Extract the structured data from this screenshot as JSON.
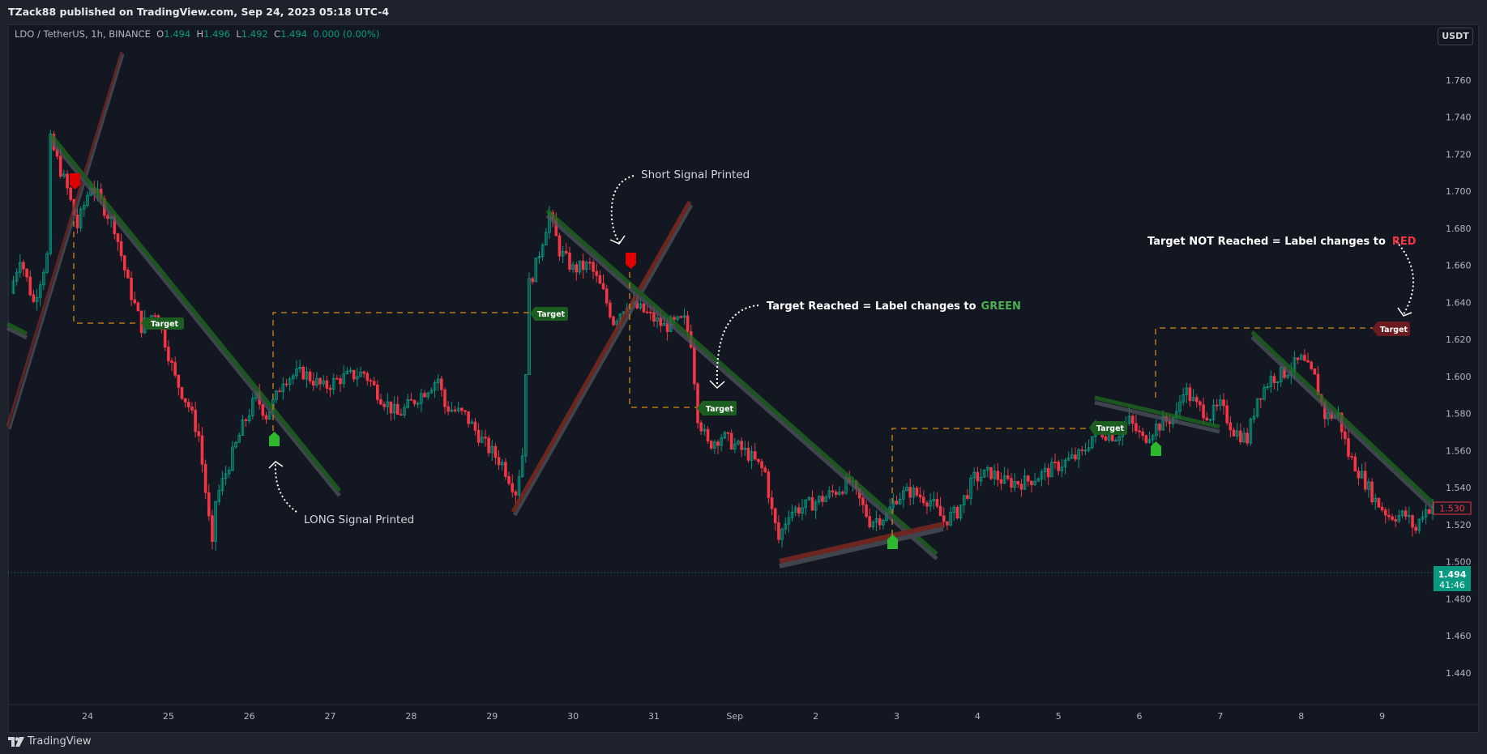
{
  "header": {
    "publisher_line": "TZack88 published on TradingView.com, Sep 24, 2023 05:18 UTC-4"
  },
  "legend": {
    "symbol": "LDO / TetherUS, 1h, BINANCE",
    "o_label": "O",
    "o": "1.494",
    "h_label": "H",
    "h": "1.496",
    "l_label": "L",
    "l": "1.492",
    "c_label": "C",
    "c": "1.494",
    "change": "0.000 (0.00%)"
  },
  "currency_button": "USDT",
  "price_axis": {
    "ticks": [
      "1.760",
      "1.740",
      "1.720",
      "1.700",
      "1.680",
      "1.660",
      "1.640",
      "1.620",
      "1.600",
      "1.580",
      "1.560",
      "1.540",
      "1.520",
      "1.500",
      "1.480",
      "1.460",
      "1.440"
    ],
    "marker_label": "1.530",
    "current_price": "1.494",
    "countdown": "41:46"
  },
  "time_axis": {
    "ticks": [
      "24",
      "25",
      "26",
      "27",
      "28",
      "29",
      "30",
      "31",
      "Sep",
      "2",
      "3",
      "4",
      "5",
      "6",
      "7",
      "8",
      "9"
    ]
  },
  "annotations": {
    "long_signal": "LONG Signal Printed",
    "short_signal": "Short Signal Printed",
    "target_reached": "Target Reached = Label changes to",
    "target_reached_color_word": "GREEN",
    "target_not_reached": "Target NOT Reached = Label changes to",
    "target_not_reached_color_word": "RED",
    "target_label": "Target"
  },
  "colors": {
    "up": "#089981",
    "down": "#f23645",
    "target_hit": "#1b5e20",
    "target_miss": "#6b1a1f",
    "green_word": "#4caf50",
    "red_word": "#f23645",
    "long_marker": "#2eb82e",
    "short_marker": "#e00000"
  },
  "footer": {
    "brand": "TradingView"
  },
  "chart_data": {
    "type": "candlestick",
    "symbol": "LDO / TetherUS",
    "interval": "1h",
    "ylim": [
      1.43,
      1.775
    ],
    "price_path": [
      [
        "2023-08-23 01:00",
        1.645
      ],
      [
        "2023-08-23 04:00",
        1.665
      ],
      [
        "2023-08-23 08:00",
        1.64
      ],
      [
        "2023-08-23 12:00",
        1.665
      ],
      [
        "2023-08-23 13:00",
        1.727
      ],
      [
        "2023-08-23 14:00",
        1.722
      ],
      [
        "2023-08-23 18:00",
        1.701
      ],
      [
        "2023-08-23 21:00",
        1.681
      ],
      [
        "2023-08-24 01:00",
        1.704
      ],
      [
        "2023-08-24 08:00",
        1.681
      ],
      [
        "2023-08-24 12:00",
        1.65
      ],
      [
        "2023-08-24 16:00",
        1.627
      ],
      [
        "2023-08-24 20:00",
        1.635
      ],
      [
        "2023-08-24 23:00",
        1.619
      ],
      [
        "2023-08-25 02:00",
        1.599
      ],
      [
        "2023-08-25 06:00",
        1.584
      ],
      [
        "2023-08-25 09:00",
        1.568
      ],
      [
        "2023-08-25 11:00",
        1.538
      ],
      [
        "2023-08-25 13:00",
        1.507
      ],
      [
        "2023-08-25 14:00",
        1.533
      ],
      [
        "2023-08-25 18:00",
        1.553
      ],
      [
        "2023-08-25 22:00",
        1.573
      ],
      [
        "2023-08-26 02:00",
        1.589
      ],
      [
        "2023-08-26 05:00",
        1.579
      ],
      [
        "2023-08-26 08:00",
        1.589
      ],
      [
        "2023-08-26 10:00",
        1.599
      ],
      [
        "2023-08-26 16:00",
        1.602
      ],
      [
        "2023-08-26 22:00",
        1.594
      ],
      [
        "2023-08-27 03:00",
        1.599
      ],
      [
        "2023-08-27 10:00",
        1.602
      ],
      [
        "2023-08-27 15:00",
        1.589
      ],
      [
        "2023-08-27 20:00",
        1.579
      ],
      [
        "2023-08-28 02:00",
        1.589
      ],
      [
        "2023-08-28 08:00",
        1.599
      ],
      [
        "2023-08-28 10:00",
        1.584
      ],
      [
        "2023-08-28 16:00",
        1.579
      ],
      [
        "2023-08-28 22:00",
        1.563
      ],
      [
        "2023-08-29 03:00",
        1.553
      ],
      [
        "2023-08-29 07:00",
        1.538
      ],
      [
        "2023-08-29 09:00",
        1.558
      ],
      [
        "2023-08-29 11:00",
        1.65
      ],
      [
        "2023-08-29 13:00",
        1.66
      ],
      [
        "2023-08-29 16:00",
        1.681
      ],
      [
        "2023-08-29 17:00",
        1.688
      ],
      [
        "2023-08-29 20:00",
        1.668
      ],
      [
        "2023-08-30 00:00",
        1.658
      ],
      [
        "2023-08-30 05:00",
        1.66
      ],
      [
        "2023-08-30 09:00",
        1.645
      ],
      [
        "2023-08-30 12:00",
        1.63
      ],
      [
        "2023-08-30 16:00",
        1.64
      ],
      [
        "2023-08-30 21:00",
        1.635
      ],
      [
        "2023-08-31 03:00",
        1.627
      ],
      [
        "2023-08-31 09:00",
        1.63
      ],
      [
        "2023-08-31 11:00",
        1.619
      ],
      [
        "2023-08-31 13:00",
        1.579
      ],
      [
        "2023-08-31 16:00",
        1.563
      ],
      [
        "2023-08-31 20:00",
        1.568
      ],
      [
        "2023-09-01 00:00",
        1.563
      ],
      [
        "2023-09-01 04:00",
        1.558
      ],
      [
        "2023-09-01 09:00",
        1.548
      ],
      [
        "2023-09-01 11:00",
        1.527
      ],
      [
        "2023-09-01 13:00",
        1.512
      ],
      [
        "2023-09-01 16:00",
        1.527
      ],
      [
        "2023-09-01 21:00",
        1.53
      ],
      [
        "2023-09-02 03:00",
        1.535
      ],
      [
        "2023-09-02 10:00",
        1.543
      ],
      [
        "2023-09-02 13:00",
        1.533
      ],
      [
        "2023-09-02 16:00",
        1.522
      ],
      [
        "2023-09-02 21:00",
        1.525
      ],
      [
        "2023-09-03 00:00",
        1.535
      ],
      [
        "2023-09-03 04:00",
        1.538
      ],
      [
        "2023-09-03 10:00",
        1.533
      ],
      [
        "2023-09-03 14:00",
        1.522
      ],
      [
        "2023-09-03 18:00",
        1.527
      ],
      [
        "2023-09-03 23:00",
        1.545
      ],
      [
        "2023-09-04 04:00",
        1.548
      ],
      [
        "2023-09-04 08:00",
        1.543
      ],
      [
        "2023-09-04 14:00",
        1.543
      ],
      [
        "2023-09-04 20:00",
        1.548
      ],
      [
        "2023-09-05 01:00",
        1.553
      ],
      [
        "2023-09-05 07:00",
        1.558
      ],
      [
        "2023-09-05 11:00",
        1.571
      ],
      [
        "2023-09-05 17:00",
        1.568
      ],
      [
        "2023-09-05 21:00",
        1.576
      ],
      [
        "2023-09-06 01:00",
        1.566
      ],
      [
        "2023-09-06 05:00",
        1.573
      ],
      [
        "2023-09-06 11:00",
        1.579
      ],
      [
        "2023-09-06 13:00",
        1.594
      ],
      [
        "2023-09-06 17:00",
        1.584
      ],
      [
        "2023-09-06 21:00",
        1.579
      ],
      [
        "2023-09-07 00:00",
        1.584
      ],
      [
        "2023-09-07 04:00",
        1.571
      ],
      [
        "2023-09-07 08:00",
        1.566
      ],
      [
        "2023-09-07 11:00",
        1.589
      ],
      [
        "2023-09-07 15:00",
        1.599
      ],
      [
        "2023-09-07 19:00",
        1.602
      ],
      [
        "2023-09-08 00:00",
        1.609
      ],
      [
        "2023-09-08 04:00",
        1.599
      ],
      [
        "2023-09-08 07:00",
        1.579
      ],
      [
        "2023-09-08 11:00",
        1.579
      ],
      [
        "2023-09-08 14:00",
        1.558
      ],
      [
        "2023-09-08 19:00",
        1.543
      ],
      [
        "2023-09-08 22:00",
        1.533
      ],
      [
        "2023-09-09 02:00",
        1.525
      ],
      [
        "2023-09-09 07:00",
        1.525
      ],
      [
        "2023-09-09 10:00",
        1.517
      ],
      [
        "2023-09-09 12:00",
        1.527
      ],
      [
        "2023-09-09 15:00",
        1.53
      ]
    ]
  }
}
